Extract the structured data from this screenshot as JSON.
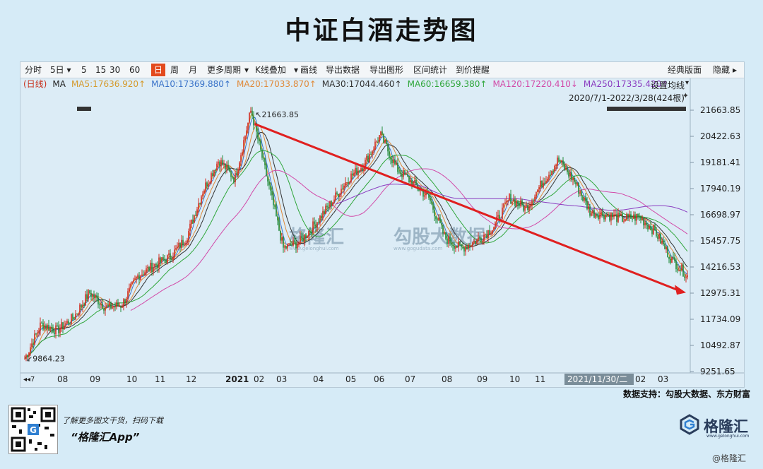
{
  "page_title": "中证白酒走势图",
  "toolbar": {
    "items": [
      "分时",
      "5日 ▾",
      "5",
      "15",
      "30",
      "60",
      "日",
      "周",
      "月",
      "更多周期",
      "▾",
      "K线叠加",
      "▾",
      "画线",
      "导出数据",
      "导出图形",
      "区间统计",
      "到价提醒"
    ],
    "active_index": 6,
    "right_items": [
      "经典版面",
      "隐藏",
      "▸"
    ]
  },
  "ma_legend": {
    "items": [
      {
        "text": "(日线)",
        "color": "#c8321e"
      },
      {
        "text": "MA",
        "color": "#222222"
      },
      {
        "text": "MA5:17636.920↑",
        "color": "#d59a2c"
      },
      {
        "text": "MA10:17369.880↑",
        "color": "#3a73c9"
      },
      {
        "text": "MA20:17033.870↑",
        "color": "#e08a3a"
      },
      {
        "text": "MA30:17044.460↑",
        "color": "#333333"
      },
      {
        "text": "MA60:16659.380↑",
        "color": "#2fa63a"
      },
      {
        "text": "MA120:17220.410↓",
        "color": "#d24aa8"
      },
      {
        "text": "MA250:17335.420↑",
        "color": "#8a3cc0"
      }
    ],
    "settings_label": "设置均线",
    "settings_arrow": "▾",
    "range_label": "2020/7/1-2022/3/28(424根)",
    "pin_icon": "✦"
  },
  "chart_data": {
    "type": "candlestick",
    "title": "中证白酒走势图",
    "x_ticks": [
      "08",
      "09",
      "10",
      "11",
      "12",
      "2021",
      "02",
      "03",
      "04",
      "05",
      "06",
      "07",
      "08",
      "09",
      "10",
      "11",
      "2021/11/30/二",
      "02",
      "03"
    ],
    "x_first_tick": "◂◂7",
    "y_ticks": [
      "21663.85",
      "20422.63",
      "19181.41",
      "17940.19",
      "16698.97",
      "15457.75",
      "14216.53",
      "12975.31",
      "11734.09",
      "10492.87",
      "9251.65"
    ],
    "ylim": [
      9251.65,
      21663.85
    ],
    "close_points": [
      [
        "2020-07",
        9864.23
      ],
      [
        "2020-07",
        11500
      ],
      [
        "2020-08",
        11200
      ],
      [
        "2020-08",
        11800
      ],
      [
        "2020-09",
        13000
      ],
      [
        "2020-09",
        12300
      ],
      [
        "2020-10",
        12400
      ],
      [
        "2020-10",
        13800
      ],
      [
        "2020-11",
        14300
      ],
      [
        "2020-11",
        14700
      ],
      [
        "2020-12",
        15600
      ],
      [
        "2020-12",
        17800
      ],
      [
        "2021-01",
        19300
      ],
      [
        "2021-01",
        18400
      ],
      [
        "2021-02",
        21663.85
      ],
      [
        "2021-02",
        18400
      ],
      [
        "2021-03",
        15100
      ],
      [
        "2021-03",
        15400
      ],
      [
        "2021-04",
        16300
      ],
      [
        "2021-04",
        17300
      ],
      [
        "2021-05",
        18400
      ],
      [
        "2021-05",
        19100
      ],
      [
        "2021-06",
        20500
      ],
      [
        "2021-06",
        18900
      ],
      [
        "2021-07",
        18200
      ],
      [
        "2021-07",
        17500
      ],
      [
        "2021-08",
        15600
      ],
      [
        "2021-08",
        15100
      ],
      [
        "2021-09",
        15500
      ],
      [
        "2021-09",
        16100
      ],
      [
        "2021-10",
        17500
      ],
      [
        "2021-10",
        17000
      ],
      [
        "2021-11",
        18200
      ],
      [
        "2021-11",
        19300
      ],
      [
        "2021-12",
        18300
      ],
      [
        "2021-12",
        16800
      ],
      [
        "2022-01",
        16700
      ],
      [
        "2022-01",
        16500
      ],
      [
        "2022-02",
        16600
      ],
      [
        "2022-02",
        15900
      ],
      [
        "2022-03",
        14600
      ],
      [
        "2022-03",
        13800
      ]
    ],
    "annotations": {
      "high_label": "21663.85",
      "low_label": "9864.23"
    },
    "trend_line": {
      "from": [
        "2021-02",
        21663.85
      ],
      "to": [
        "2022-03",
        13000
      ]
    }
  },
  "source_label": "数据支持：勾股大数据、东方财富",
  "promo": {
    "line1": "了解更多图文干货，扫码下载",
    "line2": "“格隆汇App”"
  },
  "logo": {
    "name": "格隆汇",
    "url": "www.gelonghui.com"
  },
  "watermark": {
    "text": "格隆汇",
    "sub": "www.gelonghui.com"
  },
  "watermark2": {
    "text": "勾股大数据",
    "sub": "www.gogudata.com"
  },
  "bottom_wm": "@格隆汇"
}
